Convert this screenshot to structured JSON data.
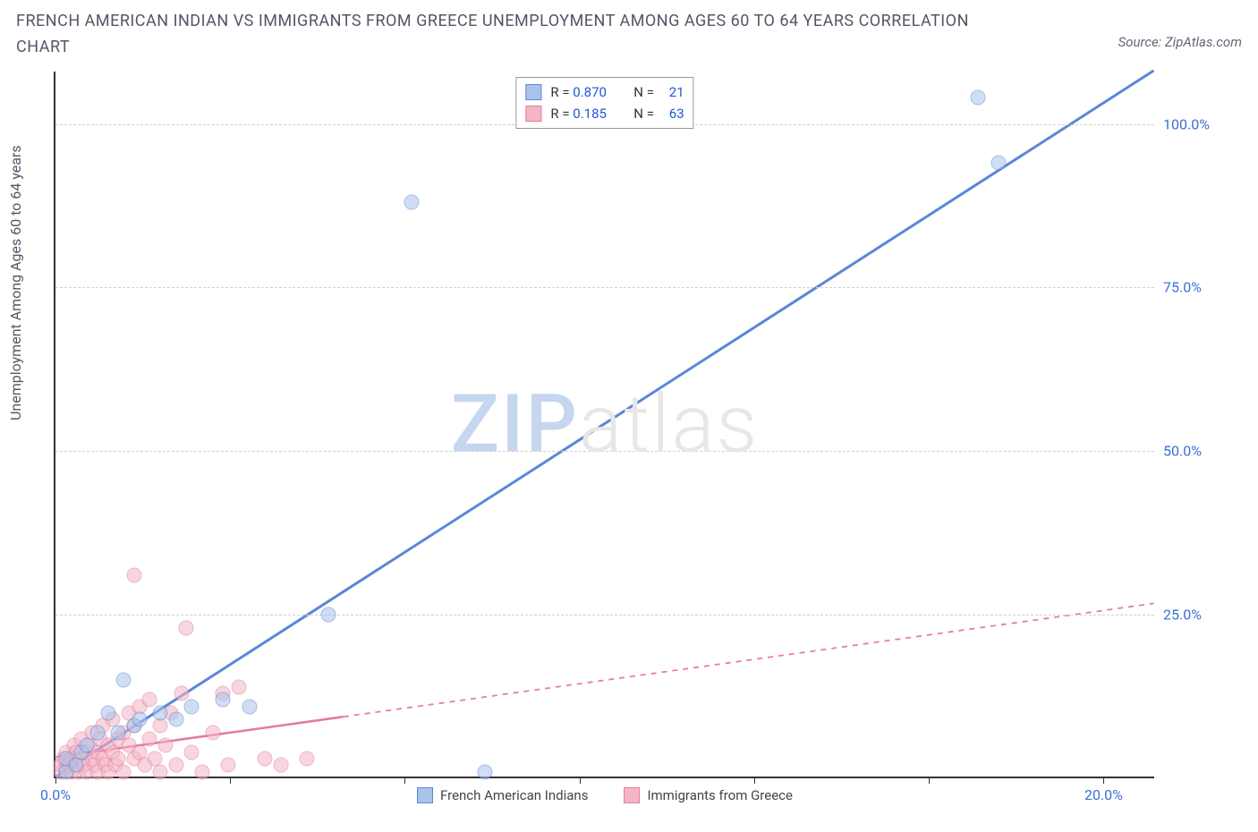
{
  "title": "FRENCH AMERICAN INDIAN VS IMMIGRANTS FROM GREECE UNEMPLOYMENT AMONG AGES 60 TO 64 YEARS CORRELATION CHART",
  "source_label": "Source: ZipAtlas.com",
  "y_axis_label": "Unemployment Among Ages 60 to 64 years",
  "watermark": {
    "part1": "ZIP",
    "part2": "atlas"
  },
  "chart": {
    "type": "scatter",
    "background_color": "#ffffff",
    "grid_color": "#d0d0d0",
    "axis_color": "#333333",
    "xlim": [
      0,
      21
    ],
    "ylim": [
      0,
      108
    ],
    "y_ticks": [
      {
        "value": 25,
        "label": "25.0%"
      },
      {
        "value": 50,
        "label": "50.0%"
      },
      {
        "value": 75,
        "label": "75.0%"
      },
      {
        "value": 100,
        "label": "100.0%"
      }
    ],
    "x_ticks": [
      {
        "value": 0,
        "label": "0.0%"
      },
      {
        "value": 3.33,
        "label": ""
      },
      {
        "value": 6.66,
        "label": ""
      },
      {
        "value": 10,
        "label": ""
      },
      {
        "value": 13.33,
        "label": ""
      },
      {
        "value": 16.66,
        "label": ""
      },
      {
        "value": 20,
        "label": "20.0%"
      }
    ],
    "series": [
      {
        "name": "French American Indians",
        "fill_color": "#a9c4ec",
        "stroke_color": "#5a87d6",
        "fill_opacity": 0.55,
        "marker_radius": 8.5,
        "trend": {
          "slope": 5.15,
          "intercept": 0,
          "solid_until_x": 21,
          "stroke_width": 3
        },
        "R": "0.870",
        "N": "21",
        "points": [
          {
            "x": 0.2,
            "y": 1
          },
          {
            "x": 0.2,
            "y": 3
          },
          {
            "x": 0.4,
            "y": 2
          },
          {
            "x": 0.5,
            "y": 4
          },
          {
            "x": 0.6,
            "y": 5
          },
          {
            "x": 0.8,
            "y": 7
          },
          {
            "x": 1.0,
            "y": 10
          },
          {
            "x": 1.2,
            "y": 7
          },
          {
            "x": 1.3,
            "y": 15
          },
          {
            "x": 1.5,
            "y": 8
          },
          {
            "x": 1.6,
            "y": 9
          },
          {
            "x": 2.0,
            "y": 10
          },
          {
            "x": 2.3,
            "y": 9
          },
          {
            "x": 2.6,
            "y": 11
          },
          {
            "x": 3.2,
            "y": 12
          },
          {
            "x": 3.7,
            "y": 11
          },
          {
            "x": 5.2,
            "y": 25
          },
          {
            "x": 6.8,
            "y": 88
          },
          {
            "x": 8.2,
            "y": 1
          },
          {
            "x": 17.6,
            "y": 104
          },
          {
            "x": 18.0,
            "y": 94
          }
        ]
      },
      {
        "name": "Immigrants from Greece",
        "fill_color": "#f3b6c6",
        "stroke_color": "#e77a9a",
        "fill_opacity": 0.55,
        "marker_radius": 8.5,
        "trend": {
          "slope": 1.12,
          "intercept": 3.0,
          "solid_until_x": 5.5,
          "stroke_width": 2.5
        },
        "R": "0.185",
        "N": "63",
        "points": [
          {
            "x": 0.1,
            "y": 1
          },
          {
            "x": 0.1,
            "y": 2
          },
          {
            "x": 0.15,
            "y": 3
          },
          {
            "x": 0.2,
            "y": 1.5
          },
          {
            "x": 0.2,
            "y": 4
          },
          {
            "x": 0.25,
            "y": 2
          },
          {
            "x": 0.3,
            "y": 1
          },
          {
            "x": 0.3,
            "y": 3
          },
          {
            "x": 0.35,
            "y": 5
          },
          {
            "x": 0.4,
            "y": 2
          },
          {
            "x": 0.4,
            "y": 4
          },
          {
            "x": 0.45,
            "y": 1
          },
          {
            "x": 0.5,
            "y": 3
          },
          {
            "x": 0.5,
            "y": 6
          },
          {
            "x": 0.55,
            "y": 2
          },
          {
            "x": 0.6,
            "y": 4
          },
          {
            "x": 0.6,
            "y": 1
          },
          {
            "x": 0.65,
            "y": 5
          },
          {
            "x": 0.7,
            "y": 3
          },
          {
            "x": 0.7,
            "y": 7
          },
          {
            "x": 0.75,
            "y": 2
          },
          {
            "x": 0.8,
            "y": 4
          },
          {
            "x": 0.8,
            "y": 1
          },
          {
            "x": 0.85,
            "y": 6
          },
          {
            "x": 0.9,
            "y": 3
          },
          {
            "x": 0.9,
            "y": 8
          },
          {
            "x": 0.95,
            "y": 2
          },
          {
            "x": 1.0,
            "y": 5
          },
          {
            "x": 1.0,
            "y": 1
          },
          {
            "x": 1.1,
            "y": 4
          },
          {
            "x": 1.1,
            "y": 9
          },
          {
            "x": 1.15,
            "y": 2
          },
          {
            "x": 1.2,
            "y": 6
          },
          {
            "x": 1.2,
            "y": 3
          },
          {
            "x": 1.3,
            "y": 7
          },
          {
            "x": 1.3,
            "y": 1
          },
          {
            "x": 1.4,
            "y": 5
          },
          {
            "x": 1.4,
            "y": 10
          },
          {
            "x": 1.5,
            "y": 3
          },
          {
            "x": 1.5,
            "y": 8
          },
          {
            "x": 1.5,
            "y": 31
          },
          {
            "x": 1.6,
            "y": 4
          },
          {
            "x": 1.6,
            "y": 11
          },
          {
            "x": 1.7,
            "y": 2
          },
          {
            "x": 1.8,
            "y": 6
          },
          {
            "x": 1.8,
            "y": 12
          },
          {
            "x": 1.9,
            "y": 3
          },
          {
            "x": 2.0,
            "y": 8
          },
          {
            "x": 2.0,
            "y": 1
          },
          {
            "x": 2.1,
            "y": 5
          },
          {
            "x": 2.2,
            "y": 10
          },
          {
            "x": 2.3,
            "y": 2
          },
          {
            "x": 2.4,
            "y": 13
          },
          {
            "x": 2.5,
            "y": 23
          },
          {
            "x": 2.6,
            "y": 4
          },
          {
            "x": 2.8,
            "y": 1
          },
          {
            "x": 3.0,
            "y": 7
          },
          {
            "x": 3.2,
            "y": 13
          },
          {
            "x": 3.3,
            "y": 2
          },
          {
            "x": 3.5,
            "y": 14
          },
          {
            "x": 4.0,
            "y": 3
          },
          {
            "x": 4.3,
            "y": 2
          },
          {
            "x": 4.8,
            "y": 3
          }
        ]
      }
    ]
  },
  "legend_bottom": [
    {
      "label": "French American Indians",
      "fill": "#a9c4ec",
      "stroke": "#5a87d6"
    },
    {
      "label": "Immigrants from Greece",
      "fill": "#f3b6c6",
      "stroke": "#e77a9a"
    }
  ]
}
